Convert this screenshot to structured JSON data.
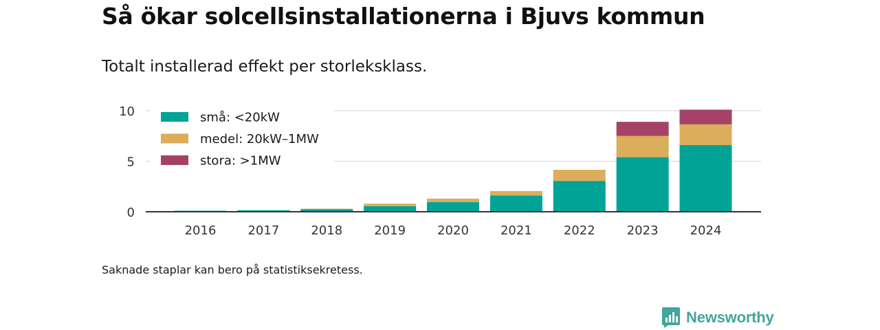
{
  "header": {
    "title": "Så ökar solcellsinstallationerna i Bjuvs kommun",
    "subtitle": "Totalt installerad effekt per storleksklass."
  },
  "footnote": "Saknade staplar kan bero på statistiksekretess.",
  "brand": {
    "name": "Newsworthy",
    "color": "#41a69b"
  },
  "chart_data": {
    "type": "bar",
    "stacked": true,
    "categories": [
      "2016",
      "2017",
      "2018",
      "2019",
      "2020",
      "2021",
      "2022",
      "2023",
      "2024"
    ],
    "series": [
      {
        "name": "små: <20kW",
        "color": "#00a396",
        "values": [
          0.1,
          0.15,
          0.25,
          0.55,
          0.95,
          1.6,
          3.05,
          5.4,
          6.6
        ]
      },
      {
        "name": "medel: 20kW–1MW",
        "color": "#dcad5a",
        "values": [
          0,
          0,
          0.05,
          0.25,
          0.35,
          0.45,
          1.1,
          2.1,
          2.05
        ]
      },
      {
        "name": "stora: >1MW",
        "color": "#a64267",
        "values": [
          0,
          0,
          0,
          0,
          0,
          0,
          0,
          1.4,
          1.45
        ]
      }
    ],
    "yticks": [
      0,
      5,
      10
    ],
    "ylim": [
      0,
      10
    ],
    "grid": true,
    "legend_position": "top-left"
  }
}
